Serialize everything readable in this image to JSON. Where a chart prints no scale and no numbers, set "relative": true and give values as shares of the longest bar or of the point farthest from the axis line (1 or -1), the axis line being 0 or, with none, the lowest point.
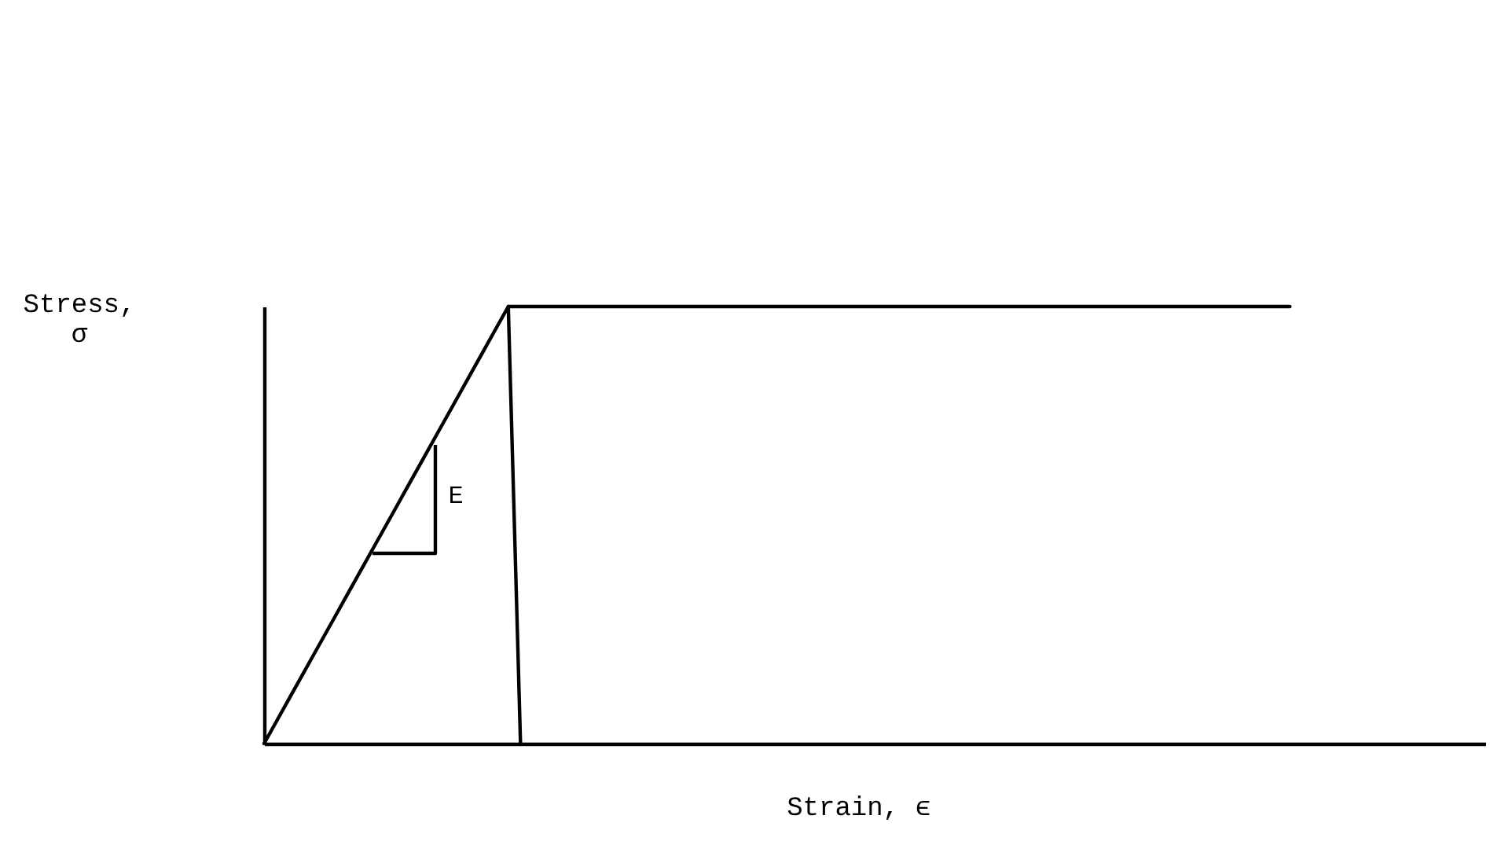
{
  "chart_data": {
    "type": "line",
    "relative": true,
    "xlabel": "Strain, ϵ",
    "ylabel": "Stress, σ",
    "categories": [
      null,
      null,
      null,
      null,
      null,
      null,
      null,
      null,
      null,
      null,
      null,
      null,
      null,
      null,
      null,
      null,
      null,
      null,
      null,
      null,
      null,
      null,
      null,
      null,
      null,
      null,
      null,
      null,
      null,
      null,
      null,
      null,
      null,
      null,
      null,
      null,
      null,
      null,
      null,
      null,
      null,
      null,
      null,
      null,
      null,
      null,
      null,
      null,
      null,
      null,
      null,
      null,
      null,
      null,
      null,
      null,
      null,
      null,
      null,
      null,
      null,
      null,
      null,
      null,
      null,
      null,
      null,
      null,
      null,
      null,
      null,
      null,
      null,
      null,
      null,
      null,
      null,
      null,
      null,
      null,
      null,
      null,
      null,
      null,
      null,
      null,
      null,
      null,
      null,
      null,
      null,
      null,
      null,
      null,
      null,
      null,
      null,
      null,
      null,
      null,
      null
    ],
    "series": [
      {
        "color": "#000000",
        "values": [
          0,
          0.05,
          0.1,
          0.15,
          0.2,
          0.25,
          0.3,
          0.35,
          0.4,
          0.45,
          0.5,
          0.55,
          0.6,
          0.65,
          0.7,
          0.75,
          0.8,
          0.85,
          0.9,
          0.95,
          1,
          1,
          1,
          1,
          1,
          1,
          1,
          1,
          1,
          1,
          1,
          1,
          1,
          1,
          1,
          1,
          1,
          1,
          1,
          1,
          1,
          1,
          1,
          1,
          1,
          1,
          1,
          1,
          1,
          1,
          1,
          1,
          1,
          1,
          1,
          1,
          1,
          1,
          1,
          1,
          1,
          1,
          1,
          1,
          1,
          1,
          1,
          1,
          1,
          1,
          1,
          1,
          1,
          1,
          1,
          1,
          1,
          1,
          1,
          1,
          1,
          1,
          1,
          1,
          1,
          null,
          null,
          null,
          null,
          null,
          null,
          null,
          null,
          null,
          null,
          null,
          null,
          null,
          null,
          null,
          null
        ]
      },
      {
        "color": "#000000",
        "values": [
          null,
          null,
          null,
          null,
          null,
          null,
          null,
          null,
          null,
          null,
          null,
          null,
          null,
          null,
          null,
          null,
          null,
          null,
          null,
          null,
          1,
          0,
          null,
          null,
          null,
          null,
          null,
          null,
          null,
          null,
          null,
          null,
          null,
          null,
          null,
          null,
          null,
          null,
          null,
          null,
          null,
          null,
          null,
          null,
          null,
          null,
          null,
          null,
          null,
          null,
          null,
          null,
          null,
          null,
          null,
          null,
          null,
          null,
          null,
          null,
          null,
          null,
          null,
          null,
          null,
          null,
          null,
          null,
          null,
          null,
          null,
          null,
          null,
          null,
          null,
          null,
          null,
          null,
          null,
          null,
          null,
          null,
          null,
          null,
          null,
          null,
          null,
          null,
          null,
          null,
          null,
          null,
          null,
          null,
          null,
          null,
          null,
          null,
          null,
          null,
          null
        ]
      }
    ],
    "annotations": [
      "E"
    ]
  }
}
